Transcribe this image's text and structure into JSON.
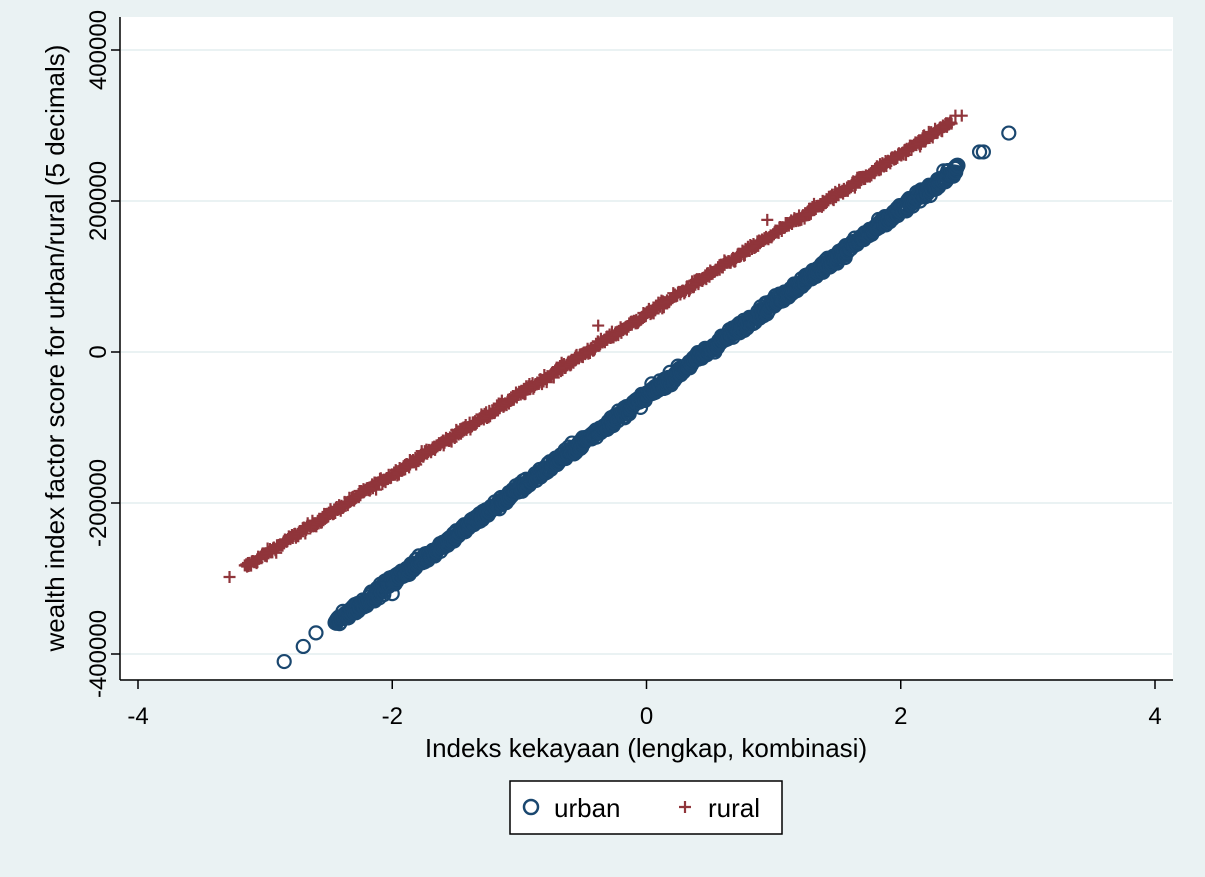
{
  "chart_data": {
    "type": "scatter",
    "xlabel": "Indeks kekayaan (lengkap, kombinasi)",
    "ylabel": "wealth index factor score for urban/rural (5 decimals)",
    "xlim": [
      -4,
      4
    ],
    "ylim": [
      -400000,
      400000
    ],
    "x_ticks": [
      -4,
      -2,
      0,
      2,
      4
    ],
    "x_tick_labels": [
      "-4",
      "-2",
      "0",
      "2",
      "4"
    ],
    "y_ticks": [
      -400000,
      -200000,
      0,
      200000,
      400000
    ],
    "y_tick_labels": [
      "-400000",
      "-200000",
      "0",
      "200000",
      "400000"
    ],
    "grid": "horizontal",
    "legend_position": "bottom",
    "series": [
      {
        "name": "urban",
        "marker": "hollow-circle",
        "color": "#1a476f",
        "x_range": [
          -2.85,
          2.85
        ],
        "y_range": [
          -410000,
          290000
        ],
        "outliers": [
          [
            -2.85,
            -410000
          ],
          [
            -2.7,
            -390000
          ],
          [
            -2.6,
            -372000
          ],
          [
            -2.0,
            -320000
          ],
          [
            2.62,
            265000
          ],
          [
            2.65,
            265000
          ],
          [
            2.85,
            290000
          ]
        ]
      },
      {
        "name": "rural",
        "marker": "plus",
        "color": "#90353b",
        "x_range": [
          -3.28,
          2.48
        ],
        "y_range": [
          -298000,
          313000
        ],
        "outliers": [
          [
            -3.28,
            -298000
          ],
          [
            -0.38,
            35000
          ],
          [
            0.95,
            175000
          ],
          [
            2.43,
            313000
          ],
          [
            2.48,
            313000
          ]
        ]
      }
    ]
  }
}
